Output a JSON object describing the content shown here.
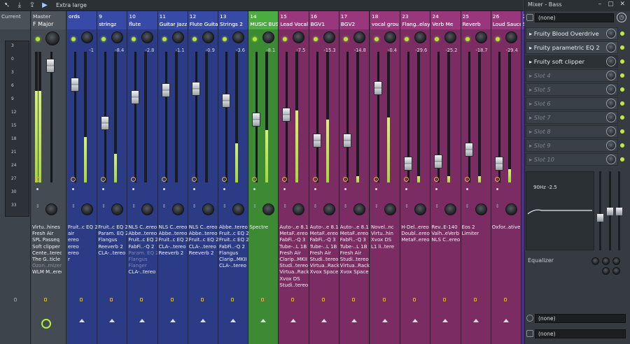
{
  "toolbar": {
    "label": "Extra large",
    "icons": [
      "arrow-icon",
      "download-icon",
      "export-icon",
      "play-icon"
    ]
  },
  "current": {
    "label": "Current",
    "scale": [
      "3",
      "0",
      "3",
      "6",
      "9",
      "12",
      "15",
      "18",
      "21",
      "24",
      "27",
      "30",
      "33"
    ]
  },
  "master": {
    "label": "Master",
    "sub": "F Major",
    "fx": [
      "Virtu..hines",
      "Fresh Air",
      "SPL Passeq",
      "Soft clipper",
      "Cente..tereo",
      "The G..ticle",
      "Ozon..mizer",
      "WLM M..ereo"
    ],
    "fx_dim": [
      6
    ]
  },
  "channels": [
    {
      "num": "",
      "name": "ords",
      "val": "-1",
      "color": "#2c3b86",
      "fx": [
        "Fruit..c EQ 2",
        "air",
        "ereo",
        "ereo",
        "ereo",
        "r"
      ],
      "meter": 0.35,
      "fader": 0.78
    },
    {
      "num": "9",
      "name": "stringz",
      "val": "-8.4",
      "color": "#2c3b86",
      "fx": [
        "Fruit..c EQ 2",
        "Param. EQ 2",
        "Flangus",
        "Reeverb 2",
        "CLA-..tereo"
      ],
      "meter": 0.22,
      "fader": 0.45
    },
    {
      "num": "10",
      "name": "flute",
      "val": "-2.8",
      "color": "#2c3b86",
      "fx": [
        "NLS C..ereo",
        "Abbe..tereo",
        "Fruit..c EQ 2",
        "FabFi..-Q 2",
        "Param. EQ 2",
        "Flangus",
        "Flanger",
        "CLA-..tereo"
      ],
      "fx_dim": [
        4,
        5,
        6
      ],
      "meter": 0,
      "fader": 0.67
    },
    {
      "num": "11",
      "name": "Guitar Jazz",
      "val": "-1.1",
      "color": "#2c3b86",
      "fx": [
        "NLS C..ereo",
        "Abbe..tereo",
        "Fruit..c EQ 2",
        "CLA-..tereo",
        "Reeverb 2"
      ],
      "meter": 0,
      "fader": 0.73
    },
    {
      "num": "12",
      "name": "Flute Guitar",
      "val": "-0.9",
      "color": "#2c3b86",
      "fx": [
        "NLS C..ereo",
        "Abbe..tereo",
        "Fruit..c EQ 2",
        "CLA-..tereo",
        "Reeverb 2"
      ],
      "meter": 0,
      "fader": 0.74
    },
    {
      "num": "13",
      "name": "Strings 2",
      "val": "-3.6",
      "color": "#2c3b86",
      "fx": [
        "Abbe..tereo",
        "Fruit..c EQ 2",
        "Fruit..c EQ 2",
        "FabFi..-Q 2",
        "Flangus",
        "Clarip..MKII",
        "CLA-..tereo"
      ],
      "meter": 0.3,
      "fader": 0.64
    },
    {
      "num": "14",
      "name": "MUSIC BUSS",
      "val": "-8.1",
      "color": "#3c8a33",
      "fx": [
        "Spectre"
      ],
      "meter": 0.4,
      "fader": 0.48
    },
    {
      "num": "15",
      "name": "Lead Vocal",
      "val": "-7.5",
      "color": "#7b2c63",
      "fx": [
        "Auto-..e 8.1",
        "MetaF..ereo",
        "FabFi..-Q 3",
        "Tube-..L 1B",
        "Fresh Air",
        "Clarip..MKII",
        "Studi..tereo",
        "Virtua..Rack",
        "Xvox DS",
        "Studi..tereo"
      ],
      "meter": 0.55,
      "fader": 0.52
    },
    {
      "num": "16",
      "name": "BGV1",
      "val": "-15.3",
      "color": "#7b2c63",
      "fx": [
        "Auto-..e 8.1",
        "MetaF..ereo",
        "FabFi..-Q 3",
        "Tube-..L 1B",
        "Fresh Air",
        "Studi..tereo",
        "Virtua..Rack",
        "Xvox Space"
      ],
      "meter": 0.48,
      "fader": 0.3
    },
    {
      "num": "17",
      "name": "BGV2",
      "val": "-14.8",
      "color": "#7b2c63",
      "fx": [
        "Auto-..e 8.1",
        "MetaF..ereo",
        "FabFi..-Q 3",
        "Tube-..L 1B",
        "Fresh Air",
        "Studi..tereo",
        "Virtua..Rack",
        "Xvox Space"
      ],
      "meter": 0.05,
      "fader": 0.3
    },
    {
      "num": "18",
      "name": "vocal grou",
      "val": "-0.4",
      "color": "#7b2c63",
      "fx": [
        "Novel..nc",
        "Virtu..hin",
        "Xvox DS",
        "L1 li..tere"
      ],
      "meter": 0.5,
      "fader": 0.75
    },
    {
      "num": "23",
      "name": "Flang..elay",
      "val": "-29.6",
      "color": "#7b2c63",
      "fx": [
        "H-Del..ereo",
        "Doubl..ereo",
        "MetaF..ereo"
      ],
      "meter": 0.05,
      "fader": 0.1
    },
    {
      "num": "24",
      "name": "Verb Me",
      "val": "-25.2",
      "color": "#7b2c63",
      "fx": [
        "Rev..E-140",
        "Valh..eVerb",
        "NLS C..ereo"
      ],
      "meter": 0.05,
      "fader": 0.12
    },
    {
      "num": "25",
      "name": "Reverb",
      "val": "-18.7",
      "color": "#7b2c63",
      "fx": [
        "Eos 2",
        "Limiter"
      ],
      "meter": 0.05,
      "fader": 0.22
    },
    {
      "num": "26",
      "name": "Loud Sauce",
      "val": "-29.4",
      "color": "#7b2c63",
      "fx": [
        "Oxfor..ative"
      ],
      "meter": 0.1,
      "fader": 0.1
    },
    {
      "num": "27",
      "name": "Send (..Off)",
      "val": "",
      "color": "#4b2d8a",
      "fx": [],
      "meter": 0.15,
      "fader": 0.75
    }
  ],
  "panel": {
    "title": "Mixer - Bass",
    "input": "(none)",
    "slots": [
      "Fruity Blood Overdrive",
      "Fruity parametric EQ 2",
      "Fruity soft clipper",
      "Slot 4",
      "Slot 5",
      "Slot 6",
      "Slot 7",
      "Slot 8",
      "Slot 9",
      "Slot 10"
    ],
    "eq_label": "Equalizer",
    "eq_freq": "90Hz",
    "eq_val": "-2.5",
    "out1": "(none)",
    "out2": "(none)"
  },
  "colors": {
    "accent": "#b7e63a",
    "blue": "#2c3b86",
    "green": "#3c8a33",
    "purple": "#7b2c63",
    "violet": "#4b2d8a"
  }
}
